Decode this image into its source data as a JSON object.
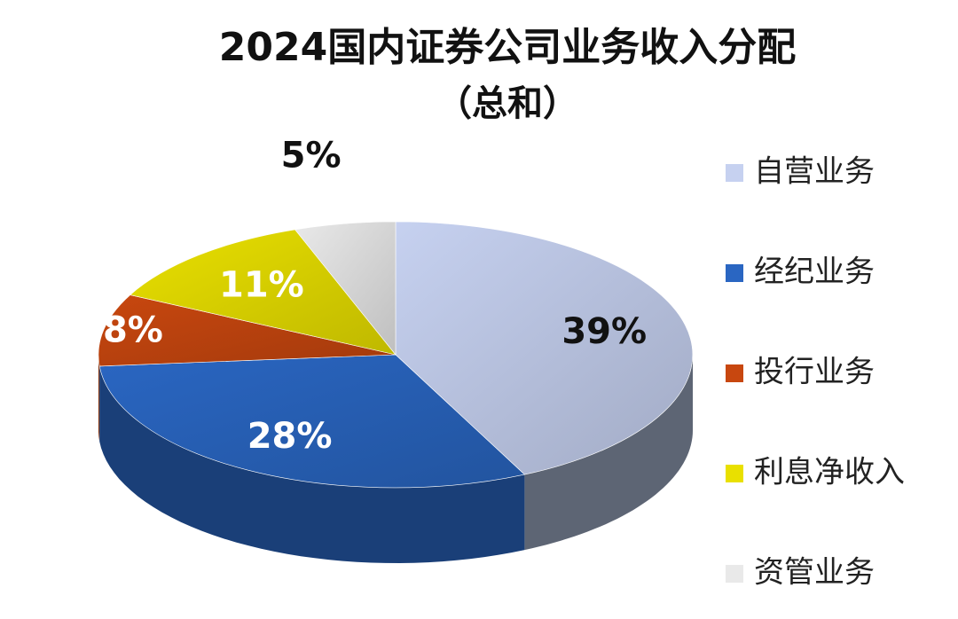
{
  "chart_data": {
    "type": "pie",
    "title": "2024国内证券公司业务收入分配",
    "subtitle": "（总和）",
    "unit": "%",
    "categories": [
      "自营业务",
      "经纪业务",
      "投行业务",
      "利息净收入",
      "资管业务"
    ],
    "values": [
      39,
      28,
      8,
      11,
      5
    ],
    "data_labels": [
      "39%",
      "28%",
      "8%",
      "11%",
      "5%"
    ],
    "colors": [
      "#c6d1f0",
      "#2a66c2",
      "#c8470f",
      "#e9e000",
      "#e9e9e9"
    ],
    "label_colors": [
      "#111111",
      "#ffffff",
      "#ffffff",
      "#ffffff",
      "#111111"
    ],
    "legend_position": "right",
    "style": "3d"
  }
}
